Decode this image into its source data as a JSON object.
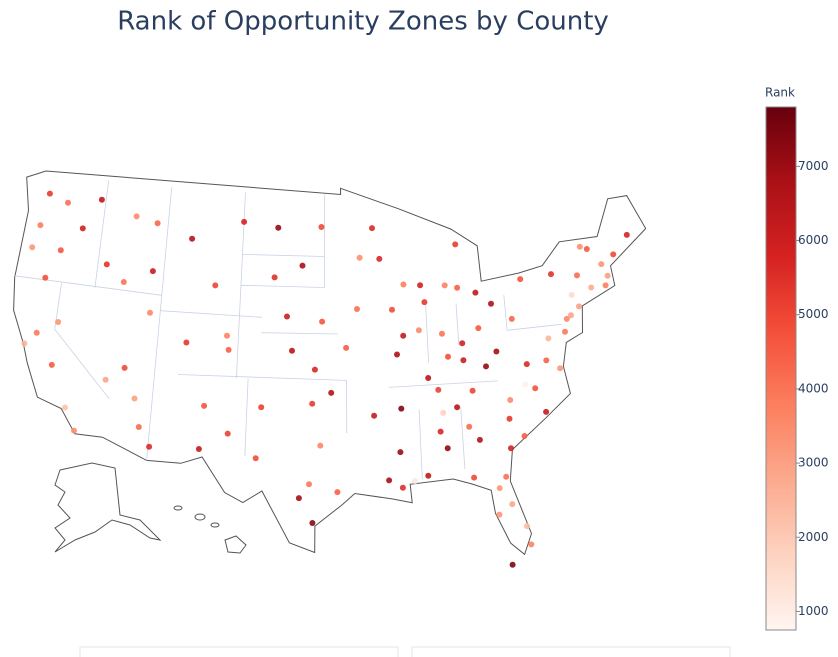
{
  "chart_data": {
    "type": "scattergeo",
    "title": "Rank of Opportunity Zones by County",
    "colorbar": {
      "title": "Rank",
      "range": [
        750,
        7800
      ],
      "ticks": [
        1000,
        2000,
        3000,
        4000,
        5000,
        6000,
        7000
      ],
      "colorscale": [
        "#fff5f0",
        "#fdd3c1",
        "#fcaa8e",
        "#fc7f5f",
        "#f44f39",
        "#d52221",
        "#aa1016",
        "#67000d"
      ]
    },
    "lon": [
      -122.3,
      -120.5,
      -117.4,
      -122.7,
      -120.5,
      -118.8,
      -123.1,
      -121.5,
      -122.4,
      -121.5,
      -119.8,
      -118.2,
      -117.2,
      -116.2,
      -114.5,
      -112.0,
      -111.9,
      -113.6,
      -115.1,
      -119.8,
      -111.9,
      -110.9,
      -112.5,
      -106.6,
      -104.5,
      -106.8,
      -105.0,
      -108.5,
      -104.8,
      -106.3,
      -108.7,
      -112.0,
      -114.0,
      -104.0,
      -100.8,
      -96.8,
      -98.5,
      -101.0,
      -96.7,
      -99.8,
      -97.3,
      -99.3,
      -97.5,
      -95.9,
      -97.7,
      -95.4,
      -98.5,
      -96.8,
      -101.8,
      -102.1,
      -97.4,
      -93.6,
      -93.3,
      -92.1,
      -89.4,
      -87.9,
      -90.2,
      -94.6,
      -92.3,
      -90.1,
      -91.2,
      -90.2,
      -88.0,
      -86.8,
      -86.3,
      -84.4,
      -81.1,
      -83.6,
      -82.5,
      -81.4,
      -80.2,
      -84.3,
      -81.7,
      -80.8,
      -78.6,
      -77.9,
      -81.0,
      -79.9,
      -86.8,
      -85.3,
      -83.9,
      -90.0,
      -85.8,
      -84.5,
      -82.6,
      -81.6,
      -80.0,
      -75.2,
      -77.0,
      -77.4,
      -79.1,
      -76.3,
      -74.0,
      -73.8,
      -76.1,
      -78.9,
      -72.7,
      -71.1,
      -71.4,
      -72.6,
      -71.5,
      -70.3,
      -68.8,
      -83.0,
      -84.6,
      -85.7,
      -84.5,
      -83.0,
      -84.5,
      -81.7,
      -86.2,
      -87.6,
      -89.6,
      -88.2,
      -90.5,
      -91.5,
      -87.6,
      -75.5,
      -74.8,
      -73.2,
      -82.3,
      -80.4,
      -89.1,
      -86.5,
      -79.4,
      -74.5,
      -81.8
    ],
    "lat": [
      47.6,
      47.2,
      47.7,
      45.5,
      44.1,
      45.7,
      44.0,
      42.2,
      37.8,
      38.6,
      36.7,
      34.1,
      32.7,
      43.6,
      42.6,
      43.5,
      40.8,
      37.1,
      36.2,
      39.5,
      33.4,
      32.2,
      35.2,
      35.1,
      33.4,
      32.3,
      39.7,
      39.1,
      38.8,
      42.9,
      45.8,
      46.6,
      46.9,
      47.1,
      46.8,
      46.9,
      44.4,
      43.6,
      40.8,
      41.1,
      37.7,
      38.9,
      35.5,
      36.2,
      30.3,
      29.8,
      29.4,
      32.8,
      35.2,
      31.9,
      27.8,
      41.6,
      44.9,
      46.8,
      43.1,
      43.0,
      38.6,
      39.1,
      34.7,
      30.0,
      30.5,
      32.3,
      30.7,
      33.5,
      32.4,
      33.7,
      32.1,
      32.8,
      27.9,
      28.5,
      25.8,
      30.4,
      30.3,
      35.2,
      35.8,
      34.2,
      34.0,
      32.8,
      36.2,
      35.0,
      36.0,
      35.1,
      38.3,
      38.0,
      37.5,
      38.4,
      40.4,
      40.0,
      38.9,
      37.5,
      37.4,
      36.9,
      40.7,
      42.7,
      43.0,
      42.9,
      41.8,
      42.4,
      41.8,
      44.3,
      43.2,
      43.7,
      44.8,
      42.3,
      42.7,
      42.9,
      45.5,
      40.0,
      39.1,
      41.5,
      39.8,
      41.9,
      39.8,
      40.1,
      41.5,
      44.8,
      37.0,
      39.2,
      40.2,
      44.5,
      29.6,
      27.0,
      30.4,
      34.7,
      36.1,
      41.5,
      24.6
    ],
    "values": [
      5200,
      4100,
      6300,
      3800,
      4600,
      5900,
      3200,
      4800,
      2600,
      3900,
      4500,
      2200,
      3400,
      5400,
      4000,
      6100,
      3600,
      4900,
      2900,
      3300,
      4200,
      5600,
      3000,
      4700,
      5100,
      6200,
      3700,
      5300,
      4400,
      5000,
      6500,
      4300,
      3500,
      5800,
      7100,
      4900,
      6800,
      5500,
      4600,
      6000,
      5700,
      6400,
      5200,
      6600,
      3900,
      4400,
      6900,
      3600,
      5100,
      4800,
      7300,
      4100,
      3400,
      5600,
      3800,
      5900,
      6700,
      4500,
      6100,
      5500,
      6800,
      7000,
      6300,
      5700,
      7200,
      4200,
      5800,
      6600,
      3300,
      2800,
      3700,
      4900,
      4100,
      3500,
      4700,
      6200,
      5300,
      4500,
      5100,
      6400,
      5000,
      7400,
      4800,
      6000,
      7100,
      6900,
      4300,
      3600,
      2500,
      4400,
      5600,
      3200,
      3000,
      4200,
      5400,
      4700,
      2700,
      3100,
      3800,
      4600,
      3300,
      4900,
      5800,
      6300,
      4400,
      3700,
      5200,
      4600,
      5900,
      6700,
      4000,
      5300,
      6200,
      3500,
      4800,
      5700,
      6500,
      3900,
      2900,
      3400,
      3200,
      2400,
      1200,
      1800,
      900,
      1500,
      7500
    ]
  }
}
